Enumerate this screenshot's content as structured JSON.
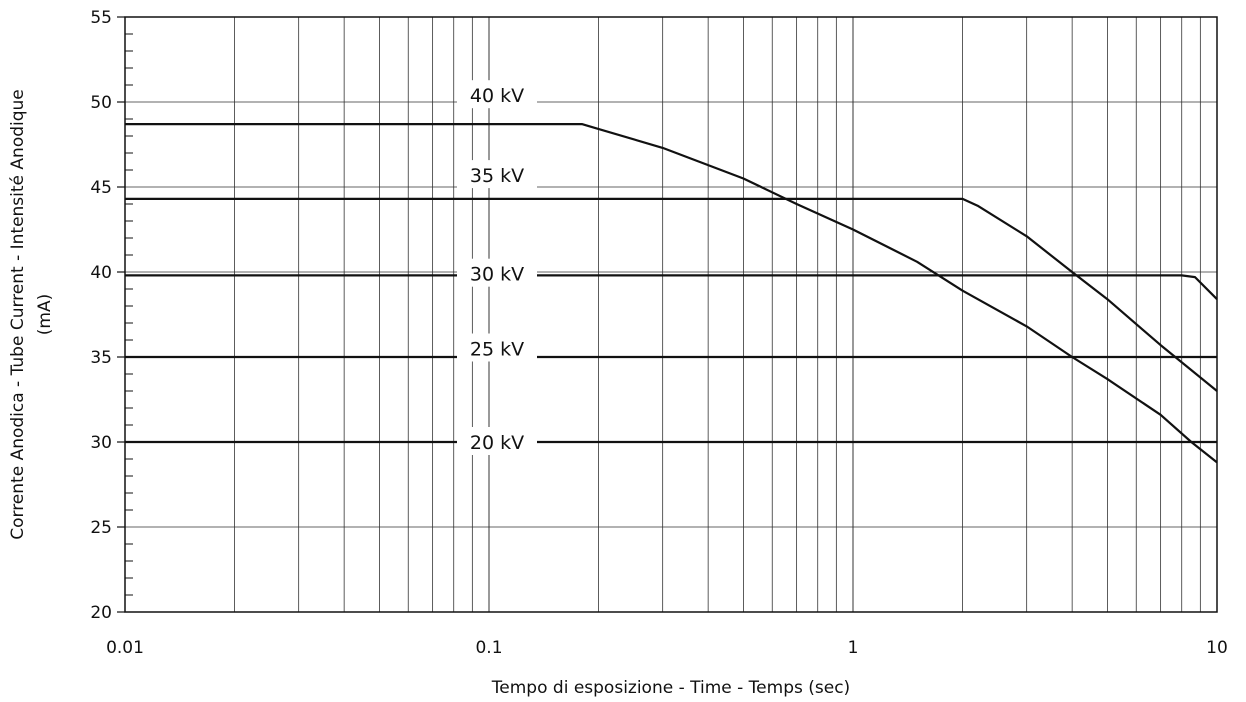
{
  "chart_data": {
    "type": "line",
    "title": "",
    "xlabel": "Tempo di esposizione - Time - Temps  (sec)",
    "ylabel_line1": "Corrente Anodica - Tube Current - Intensité Anodique",
    "ylabel_line2": "(mA)",
    "x_scale": "log",
    "xlim": [
      0.01,
      10
    ],
    "ylim": [
      20,
      55
    ],
    "grid": true,
    "x_ticks": [
      {
        "value": 0.01,
        "label": "0.01"
      },
      {
        "value": 0.1,
        "label": "0.1"
      },
      {
        "value": 1,
        "label": "1"
      },
      {
        "value": 10,
        "label": "10"
      }
    ],
    "y_ticks": [
      {
        "value": 20,
        "label": "20"
      },
      {
        "value": 25,
        "label": "25"
      },
      {
        "value": 30,
        "label": "30"
      },
      {
        "value": 35,
        "label": "35"
      },
      {
        "value": 40,
        "label": "40"
      },
      {
        "value": 45,
        "label": "45"
      },
      {
        "value": 50,
        "label": "50"
      },
      {
        "value": 55,
        "label": "55"
      }
    ],
    "series": [
      {
        "name": "40 kV",
        "label_y": 50.4,
        "points": [
          [
            0.01,
            48.7
          ],
          [
            0.18,
            48.7
          ],
          [
            0.3,
            47.3
          ],
          [
            0.5,
            45.5
          ],
          [
            0.7,
            44.0
          ],
          [
            1.0,
            42.5
          ],
          [
            1.5,
            40.6
          ],
          [
            2.0,
            38.9
          ],
          [
            3.0,
            36.8
          ],
          [
            4.0,
            35.0
          ],
          [
            5.0,
            33.7
          ],
          [
            7.0,
            31.6
          ],
          [
            8.5,
            30.0
          ],
          [
            10.0,
            28.8
          ]
        ]
      },
      {
        "name": "35 kV",
        "label_y": 45.7,
        "points": [
          [
            0.01,
            44.3
          ],
          [
            2.0,
            44.3
          ],
          [
            2.2,
            43.9
          ],
          [
            3.0,
            42.1
          ],
          [
            4.0,
            40.0
          ],
          [
            5.0,
            38.4
          ],
          [
            7.0,
            35.7
          ],
          [
            10.0,
            33.0
          ]
        ]
      },
      {
        "name": "30 kV",
        "label_y": 39.9,
        "points": [
          [
            0.01,
            39.8
          ],
          [
            8.0,
            39.8
          ],
          [
            8.7,
            39.7
          ],
          [
            10.0,
            38.4
          ]
        ]
      },
      {
        "name": "25 kV",
        "label_y": 35.5,
        "points": [
          [
            0.01,
            35.0
          ],
          [
            10.0,
            35.0
          ]
        ]
      },
      {
        "name": "20 kV",
        "label_y": 30.0,
        "points": [
          [
            0.01,
            30.0
          ],
          [
            10.0,
            30.0
          ]
        ]
      }
    ]
  }
}
